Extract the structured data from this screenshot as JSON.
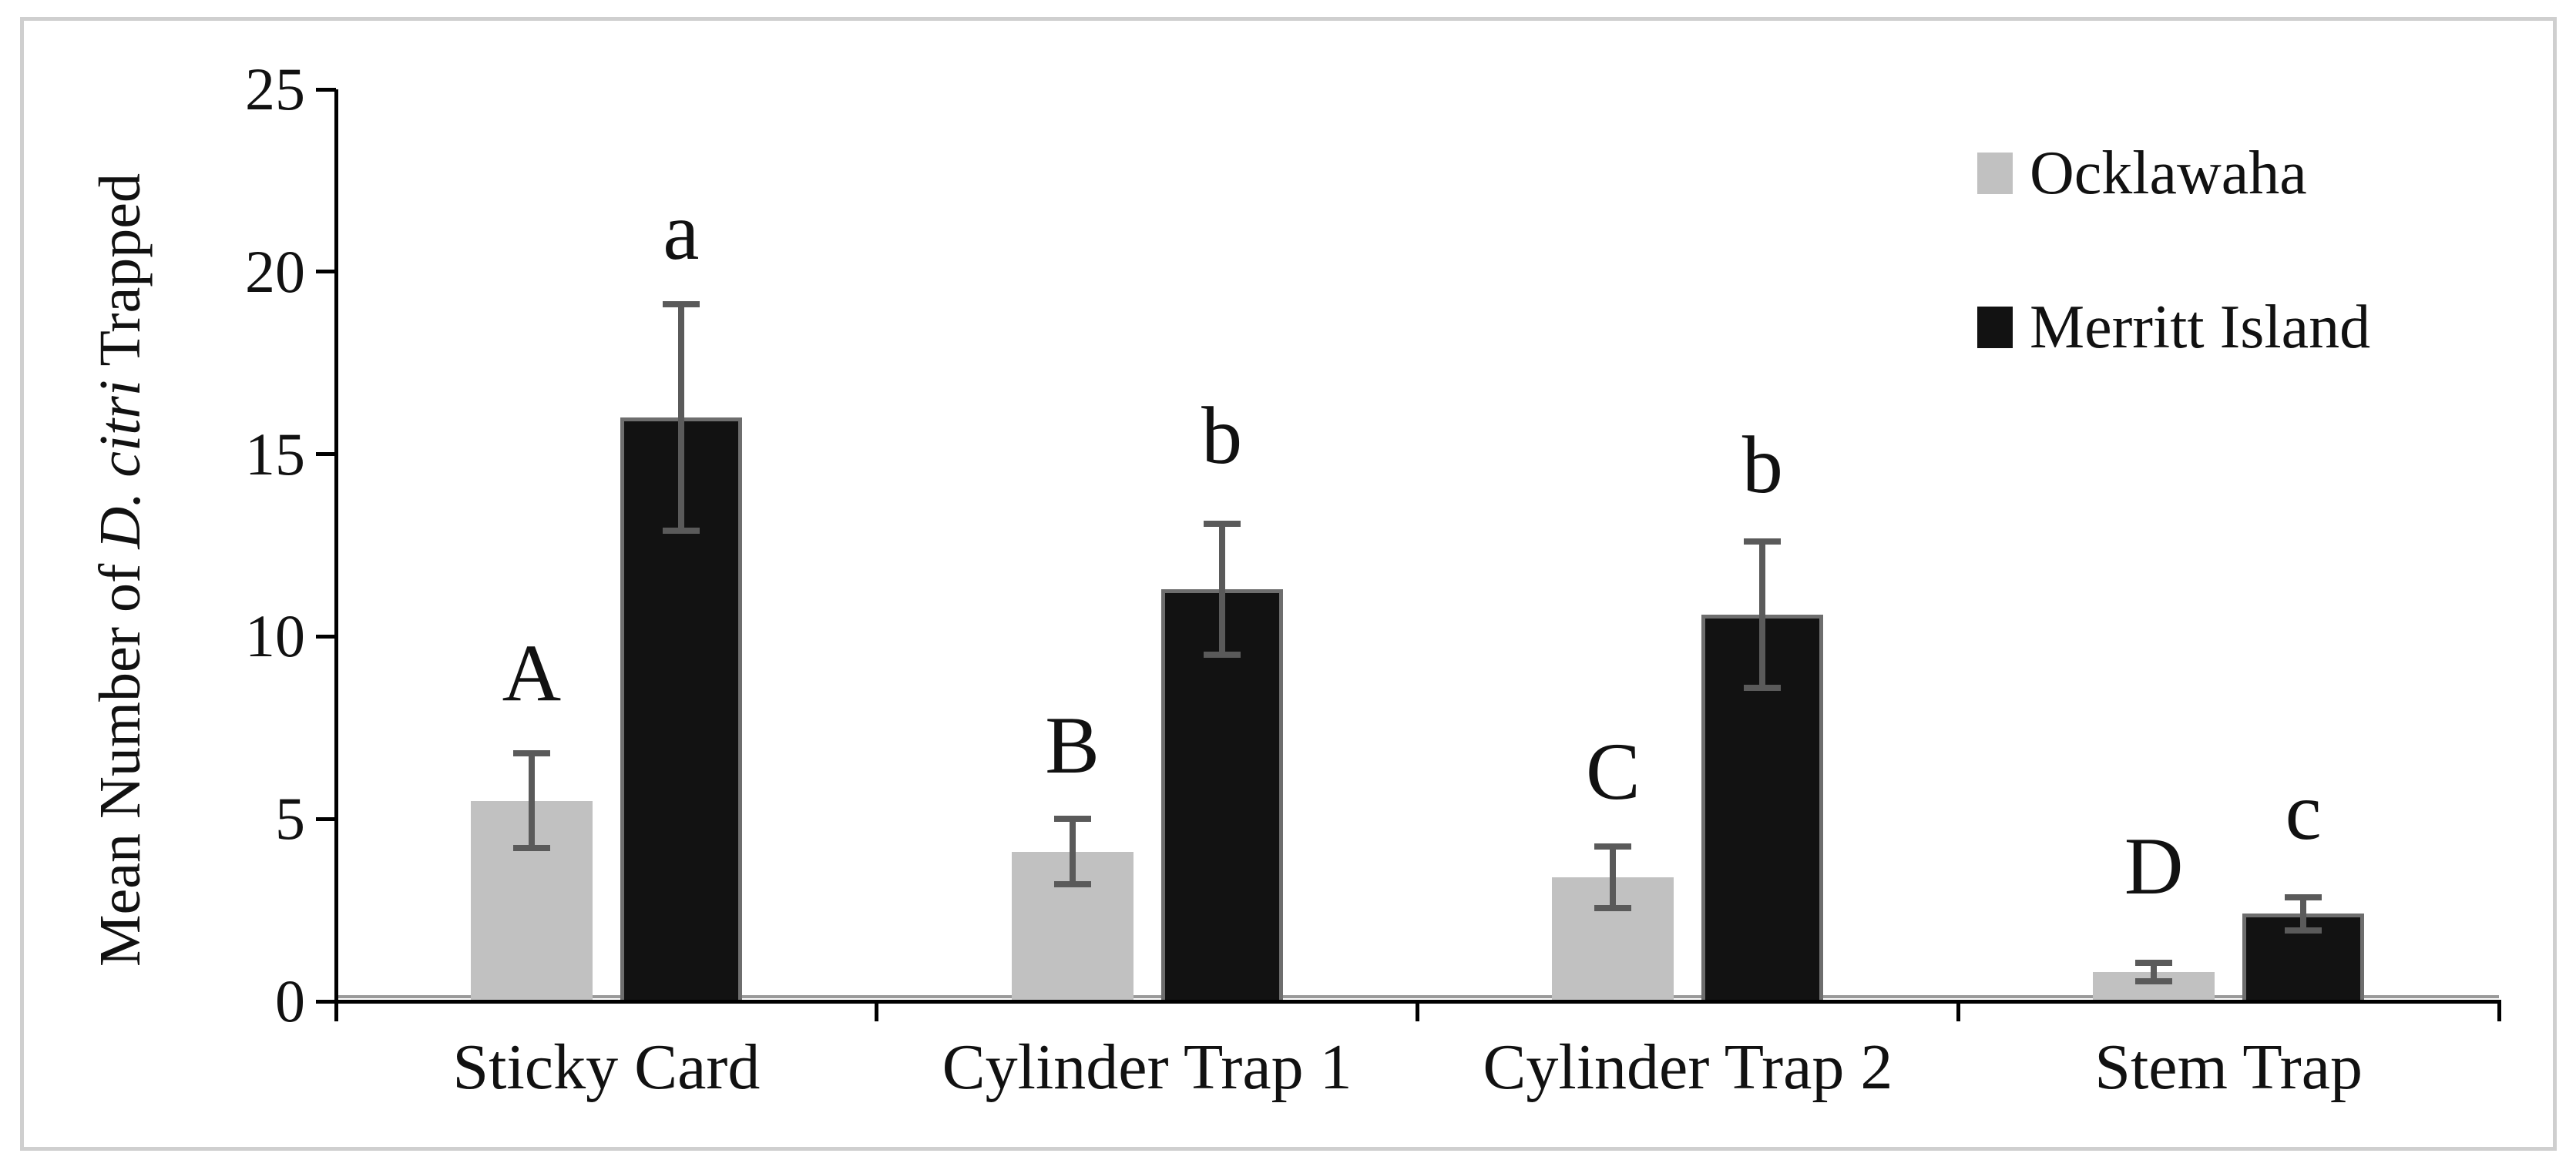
{
  "figure": {
    "ylabel_prefix": "Mean Number of ",
    "ylabel_italic": "D. citri",
    "ylabel_suffix": " Trapped"
  },
  "legend": {
    "items": [
      {
        "label": "Ocklawaha",
        "color": "#c1c1c1"
      },
      {
        "label": "Merritt Island",
        "color": "#121212"
      }
    ]
  },
  "chart_data": {
    "type": "bar",
    "title": "",
    "xlabel": "",
    "ylabel": "Mean Number of D. citri Trapped",
    "ylabel_italic_segment": "D. citri",
    "ylim": [
      0,
      25
    ],
    "yticks": [
      0,
      5,
      10,
      15,
      20,
      25
    ],
    "grid": false,
    "legend_position": "top-right",
    "categories": [
      "Sticky Card",
      "Cylinder Trap 1",
      "Cylinder Trap 2",
      "Stem Trap"
    ],
    "series": [
      {
        "name": "Ocklawaha",
        "color": "#c1c1c1",
        "values": [
          5.5,
          4.1,
          3.4,
          0.8
        ],
        "errors": [
          1.3,
          0.9,
          0.85,
          0.25
        ],
        "sig_letters": [
          "A",
          "B",
          "C",
          "D"
        ],
        "sig_letter_y": [
          9.0,
          7.0,
          6.3,
          3.7
        ]
      },
      {
        "name": "Merritt Island",
        "color": "#121212",
        "values": [
          16.0,
          11.3,
          10.6,
          2.4
        ],
        "errors": [
          3.1,
          1.8,
          2.0,
          0.45
        ],
        "sig_letters": [
          "a",
          "b",
          "b",
          "c"
        ],
        "sig_letter_y": [
          21.1,
          15.5,
          14.7,
          5.2
        ]
      }
    ],
    "error_bar_color": "#5a5a5a",
    "axis_color": "#000000"
  }
}
